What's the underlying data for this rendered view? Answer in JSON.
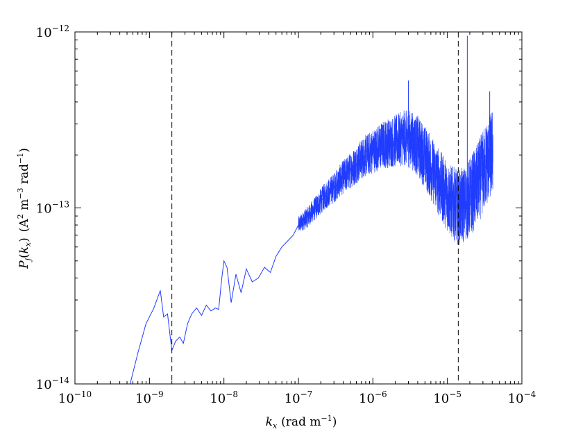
{
  "chart_data": {
    "type": "line",
    "title": "",
    "xlabel": "k_x (rad m^-1)",
    "ylabel": "P_j(k_x) (A^2 m^-3 rad^-1)",
    "xlabel_parts": {
      "base": "k",
      "sub": "x",
      "units_pre": "(rad m",
      "units_exp": "−1",
      "units_post": ")"
    },
    "ylabel_parts": {
      "func": "P",
      "func_sub": "j",
      "arg_open": "(",
      "arg": "k",
      "arg_sub": "x",
      "arg_close": ")",
      "units": "(A",
      "u1_exp": "2",
      "u2": " m",
      "u2_exp": "−3",
      "u3": " rad",
      "u3_exp": "−1",
      "u_close": ")"
    },
    "x_scale": "log",
    "y_scale": "log",
    "xlim": [
      1e-10,
      0.0001
    ],
    "ylim": [
      1e-14,
      1e-12
    ],
    "x_ticks": [
      {
        "value": 1e-10,
        "base": "10",
        "exp": "−10"
      },
      {
        "value": 1e-09,
        "base": "10",
        "exp": "−9"
      },
      {
        "value": 1e-08,
        "base": "10",
        "exp": "−8"
      },
      {
        "value": 1e-07,
        "base": "10",
        "exp": "−7"
      },
      {
        "value": 1e-06,
        "base": "10",
        "exp": "−6"
      },
      {
        "value": 1e-05,
        "base": "10",
        "exp": "−5"
      },
      {
        "value": 0.0001,
        "base": "10",
        "exp": "−4"
      }
    ],
    "y_ticks": [
      {
        "value": 1e-14,
        "base": "10",
        "exp": "−14"
      },
      {
        "value": 1e-13,
        "base": "10",
        "exp": "−13"
      },
      {
        "value": 1e-12,
        "base": "10",
        "exp": "−12"
      }
    ],
    "grid": false,
    "legend": "none",
    "vlines": [
      {
        "x": 2e-09,
        "style": "dashed",
        "color": "#000000"
      },
      {
        "x": 1.4e-05,
        "style": "dashed",
        "color": "#000000"
      }
    ],
    "series": [
      {
        "color": "#1f3cff",
        "x": [
          5.5e-10,
          7e-10,
          9e-10,
          1.15e-09,
          1.4e-09,
          1.55e-09,
          1.75e-09,
          2e-09,
          2.25e-09,
          2.55e-09,
          2.85e-09,
          3.25e-09,
          3.7e-09,
          4.3e-09,
          5e-09,
          5.8e-09,
          6.7e-09,
          7.7e-09,
          8.5e-09,
          9.3e-09,
          1e-08,
          1.1e-08,
          1.25e-08,
          1.45e-08,
          1.7e-08,
          2e-08,
          2.4e-08,
          2.9e-08,
          3.5e-08,
          4.2e-08,
          5e-08,
          6e-08,
          7.2e-08,
          8.5e-08,
          1e-07,
          1.3e-07,
          1.7e-07,
          2.2e-07,
          3e-07,
          4e-07,
          5.5e-07,
          7.5e-07,
          1e-06,
          1.4e-06,
          2e-06,
          2.6e-06,
          3.2e-06,
          4e-06,
          5e-06,
          6.5e-06,
          8.5e-06,
          1.1e-05,
          1.4e-05,
          1.7e-05,
          2e-05,
          2.5e-05,
          3e-05,
          3.6e-05,
          4.1e-05
        ],
        "y": [
          1e-14,
          1.5e-14,
          2.2e-14,
          2.7e-14,
          3.4e-14,
          2.4e-14,
          2.5e-14,
          1.55e-14,
          1.75e-14,
          1.85e-14,
          1.7e-14,
          2.2e-14,
          2.5e-14,
          2.7e-14,
          2.45e-14,
          2.8e-14,
          2.6e-14,
          2.7e-14,
          2.65e-14,
          3.9e-14,
          5e-14,
          4.6e-14,
          2.9e-14,
          4.2e-14,
          3.3e-14,
          4.5e-14,
          3.8e-14,
          4e-14,
          4.6e-14,
          4.3e-14,
          5.3e-14,
          6e-14,
          6.5e-14,
          7e-14,
          8e-14,
          8.8e-14,
          1e-13,
          1.15e-13,
          1.3e-13,
          1.5e-13,
          1.7e-13,
          1.95e-13,
          2.1e-13,
          2.3e-13,
          2.4e-13,
          2.5e-13,
          2.45e-13,
          2.25e-13,
          1.95e-13,
          1.6e-13,
          1.3e-13,
          1.1e-13,
          1e-13,
          1.05e-13,
          1.15e-13,
          1.35e-13,
          1.6e-13,
          1.9e-13,
          2.1e-13
        ],
        "noise_band_start_x": 1e-07,
        "spikes": [
          {
            "x": 1.85e-05,
            "y": 9.5e-13
          },
          {
            "x": 3.7e-05,
            "y": 4.6e-13
          },
          {
            "x": 3e-06,
            "y": 5.3e-13
          }
        ]
      }
    ]
  }
}
